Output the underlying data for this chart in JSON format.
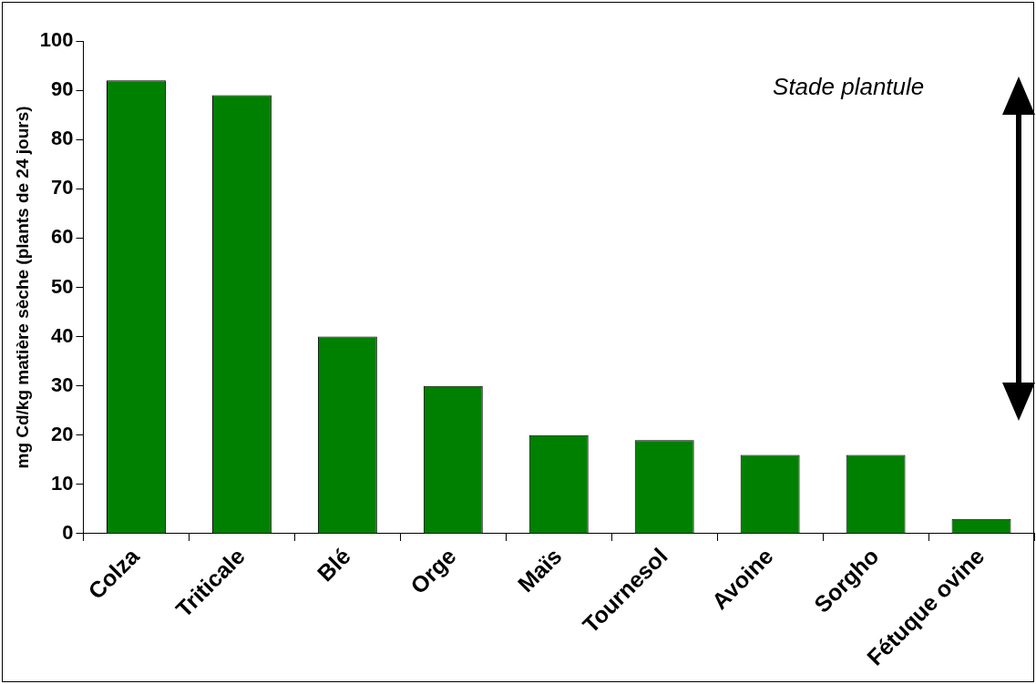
{
  "chart_data": {
    "type": "bar",
    "ylabel": "mg Cd/kg matière sèche (plants de 24 jours)",
    "categories": [
      "Colza",
      "Triticale",
      "Blé",
      "Orge",
      "Maïs",
      "Tournesol",
      "Avoine",
      "Sorgho",
      "Fétuque ovine"
    ],
    "values": [
      92,
      89,
      40,
      30,
      20,
      19,
      16,
      16,
      3
    ],
    "color": "#008000",
    "ylim": [
      0,
      100
    ],
    "yticks": [
      0,
      10,
      20,
      30,
      40,
      50,
      60,
      70,
      80,
      90,
      100
    ],
    "grid": false,
    "legend": false,
    "annotations": [
      "Stade plantule"
    ]
  }
}
